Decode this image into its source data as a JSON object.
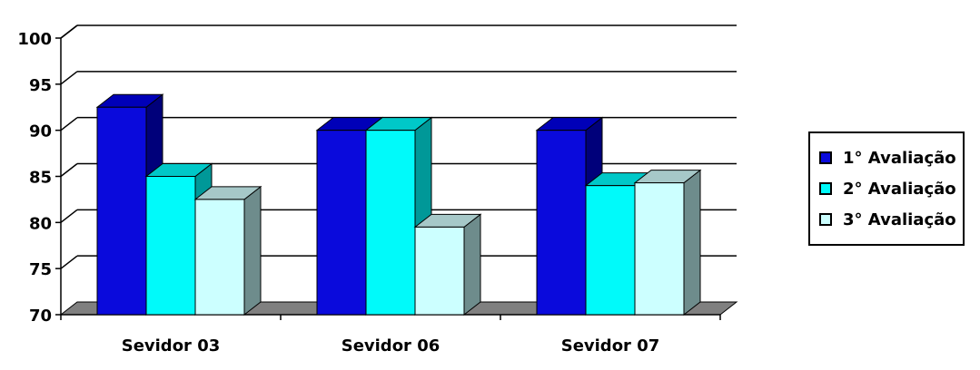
{
  "chart_data": {
    "type": "bar",
    "title": "",
    "xlabel": "",
    "ylabel": "",
    "categories": [
      "Sevidor 03",
      "Sevidor 06",
      "Sevidor 07"
    ],
    "series": [
      {
        "name": "1° Avaliação",
        "values": [
          92.5,
          90,
          90
        ],
        "color": "#0A0ADC",
        "side": "#00007A",
        "top": "#0000B8"
      },
      {
        "name": "2° Avaliação",
        "values": [
          85,
          90,
          84
        ],
        "color": "#00FAFA",
        "side": "#009898",
        "top": "#00C8C8"
      },
      {
        "name": "3° Avaliação",
        "values": [
          82.5,
          79.5,
          84.3
        ],
        "color": "#CCFFFF",
        "side": "#6E8C8C",
        "top": "#A6C8C8"
      }
    ],
    "ylim": [
      70,
      100
    ],
    "yticks": [
      70,
      75,
      80,
      85,
      90,
      95,
      100
    ],
    "grid": true,
    "legend_position": "right",
    "style": "3d-clustered-column"
  }
}
